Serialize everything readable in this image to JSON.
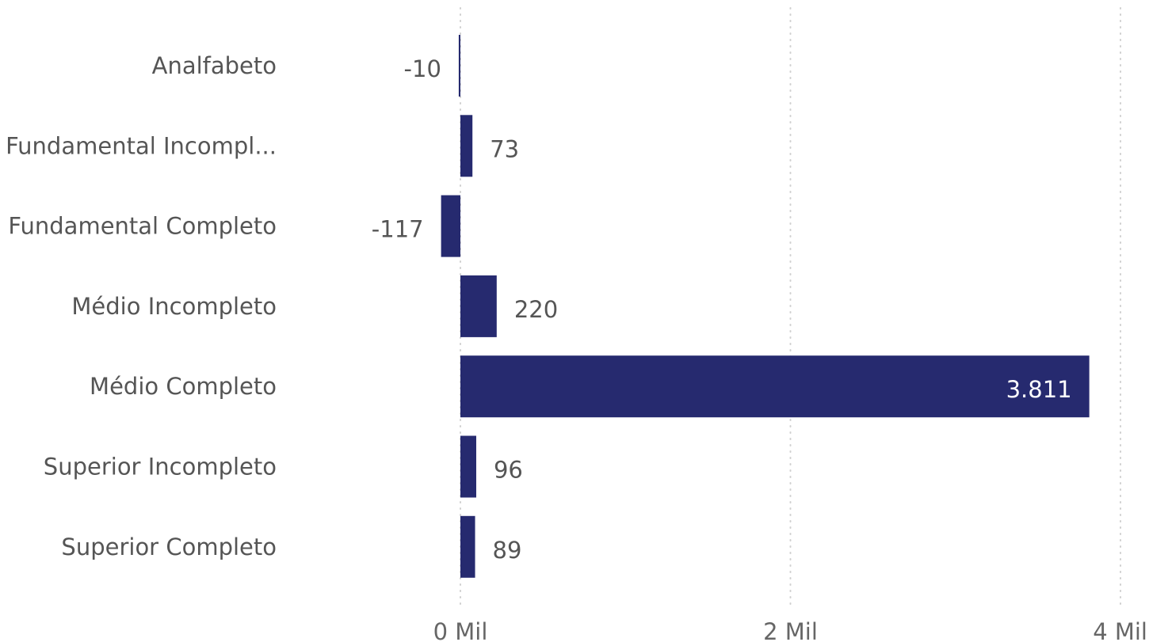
{
  "chart_data": {
    "type": "bar",
    "orientation": "horizontal",
    "categories": [
      "Analfabeto",
      "Fundamental Incompl...",
      "Fundamental Completo",
      "Médio Incompleto",
      "Médio Completo",
      "Superior Incompleto",
      "Superior Completo"
    ],
    "values": [
      -10,
      73,
      -117,
      220,
      3811,
      96,
      89
    ],
    "data_labels": [
      "-10",
      "73",
      "-117",
      "220",
      "3.811",
      "96",
      "89"
    ],
    "x_ticks": [
      {
        "value": 0,
        "label": "0 Mil"
      },
      {
        "value": 2000,
        "label": "2 Mil"
      },
      {
        "value": 4000,
        "label": "4 Mil"
      }
    ],
    "xlim": [
      0,
      4000
    ],
    "grid": "vertical dotted",
    "colors": {
      "bar": "#262a6f",
      "grid": "#d0d0d0",
      "label_outside": "#555555",
      "label_inside": "#ffffff"
    }
  }
}
